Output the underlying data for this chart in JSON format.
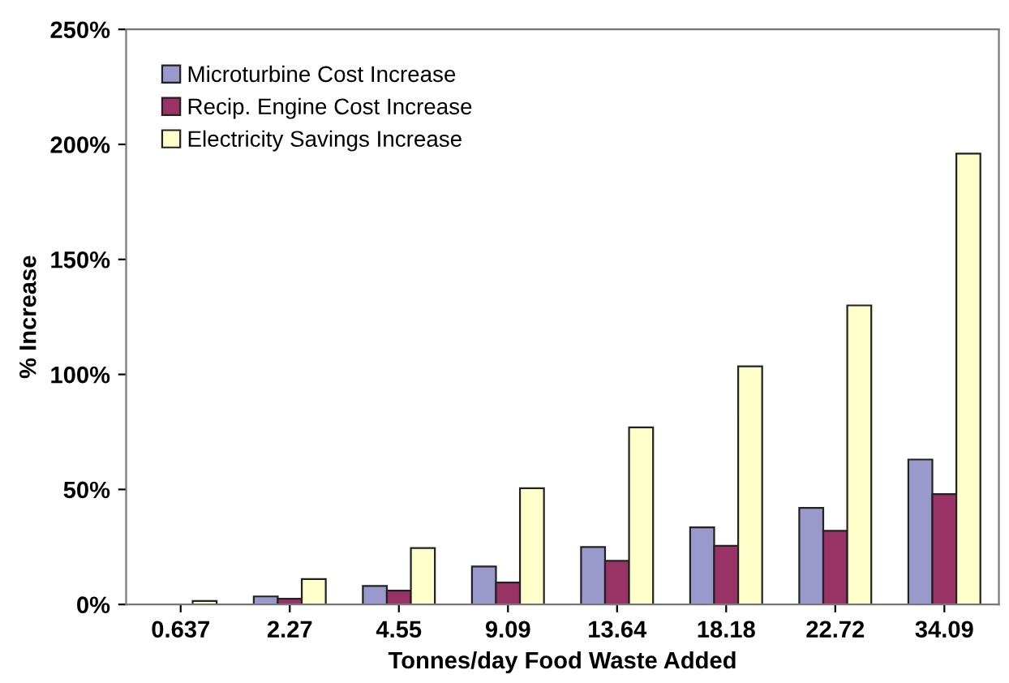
{
  "chart_data": {
    "type": "bar",
    "xlabel": "Tonnes/day Food Waste Added",
    "ylabel": "% Increase",
    "categories": [
      "0.637",
      "2.27",
      "4.55",
      "9.09",
      "13.64",
      "18.18",
      "22.72",
      "34.09"
    ],
    "series": [
      {
        "name": "Microturbine Cost Increase",
        "color": "#9999cc",
        "values": [
          null,
          3.5,
          8,
          16.5,
          25,
          33.5,
          42,
          63
        ]
      },
      {
        "name": "Recip. Engine Cost Increase",
        "color": "#993366",
        "values": [
          null,
          2.5,
          6,
          9.5,
          19,
          25.5,
          32,
          48
        ]
      },
      {
        "name": "Electricity Savings Increase",
        "color": "#ffffcc",
        "values": [
          1.5,
          11,
          24.5,
          50.5,
          77,
          103.5,
          130,
          196
        ]
      }
    ],
    "ylim": [
      0,
      250
    ],
    "yticks": [
      {
        "value": 0,
        "label": "0%"
      },
      {
        "value": 50,
        "label": "50%"
      },
      {
        "value": 100,
        "label": "100%"
      },
      {
        "value": 150,
        "label": "150%"
      },
      {
        "value": 200,
        "label": "200%"
      },
      {
        "value": 250,
        "label": "250%"
      }
    ],
    "grid": false,
    "legend": "top left"
  }
}
